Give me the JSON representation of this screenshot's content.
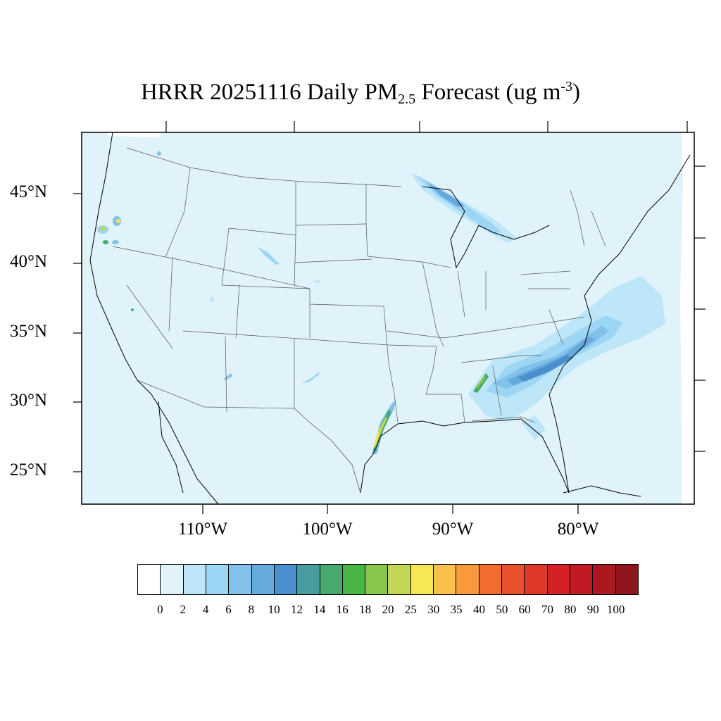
{
  "title": {
    "prefix": "HRRR 20251116 Daily PM",
    "subscript": "2.5",
    "middle": " Forecast (ug m",
    "superscript": "-3",
    "suffix": ")"
  },
  "lat_labels": [
    "45°N",
    "40°N",
    "35°N",
    "30°N",
    "25°N"
  ],
  "lon_labels": [
    "110°W",
    "100°W",
    "90°W",
    "80°W"
  ],
  "colorbar": {
    "colors": [
      "#ffffff",
      "#e0f3fb",
      "#bde6f8",
      "#9dd6f4",
      "#82c1ea",
      "#66a9dd",
      "#4b8fcf",
      "#489b9e",
      "#46a96f",
      "#49b547",
      "#86c64d",
      "#c2d655",
      "#f7e754",
      "#f9c14b",
      "#f89a3b",
      "#f36b2d",
      "#e8512d",
      "#df3728",
      "#d52028",
      "#c21a24",
      "#ab1820",
      "#8e151b"
    ],
    "labels": [
      "0",
      "2",
      "4",
      "6",
      "8",
      "10",
      "12",
      "14",
      "16",
      "18",
      "20",
      "25",
      "30",
      "35",
      "40",
      "50",
      "60",
      "70",
      "80",
      "90",
      "100"
    ]
  },
  "map": {
    "background_color": "#e0f3fb",
    "boundary_color": "#000000"
  }
}
